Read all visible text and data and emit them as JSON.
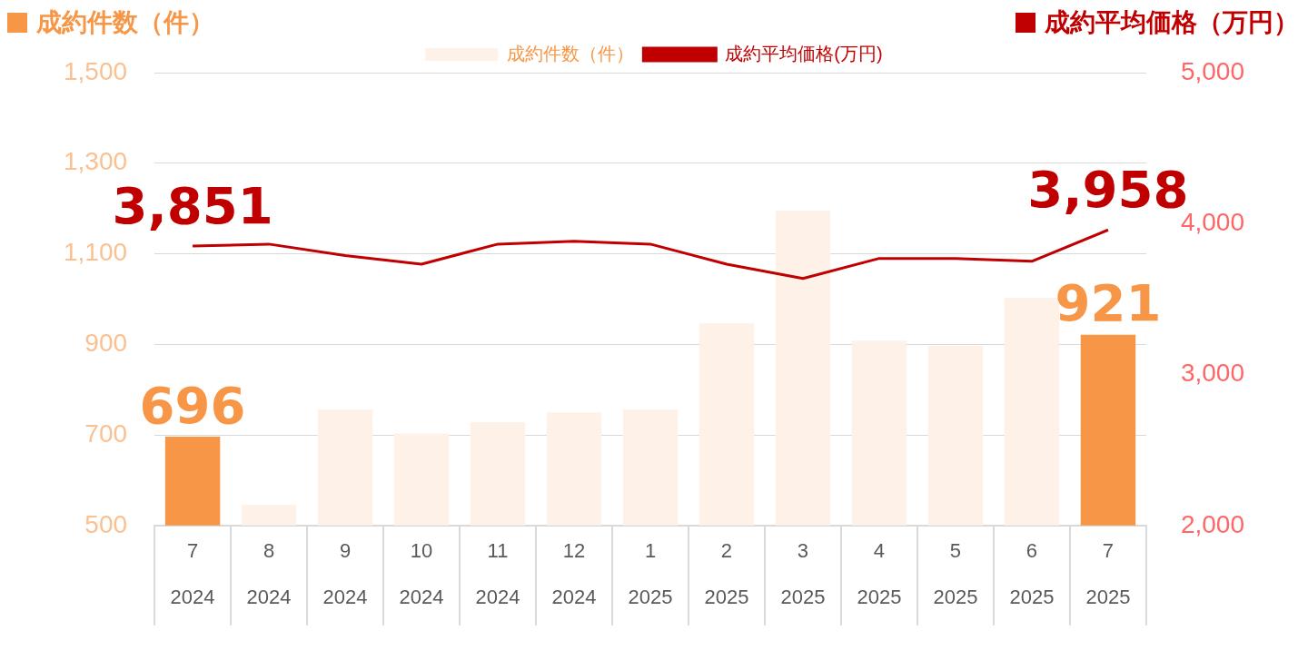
{
  "chart_data": {
    "type": "bar",
    "ylabel": "成約件数（件）",
    "y2label": "成約平均価格（万円）",
    "categories": [
      "7\n2024",
      "8\n2024",
      "9\n2024",
      "10\n2024",
      "11\n2024",
      "12\n2024",
      "1\n2025",
      "2\n2025",
      "3\n2025",
      "4\n2025",
      "5\n2025",
      "6\n2025",
      "7\n2025"
    ],
    "series": [
      {
        "name": "成約件数（件）",
        "color": "#fdf1e8",
        "colors": [
          "#f79646",
          "#fdf1e8",
          "#fdf1e8",
          "#fdf1e8",
          "#fdf1e8",
          "#fdf1e8",
          "#fdf1e8",
          "#fdf1e8",
          "#fdf1e8",
          "#fdf1e8",
          "#fdf1e8",
          "#fdf1e8",
          "#f79646"
        ],
        "values": [
          696,
          545,
          756,
          703,
          728,
          749,
          756,
          946,
          1196,
          908,
          897,
          1003,
          921
        ],
        "value_labels": [
          "696",
          null,
          null,
          null,
          null,
          null,
          null,
          null,
          null,
          null,
          null,
          null,
          "921"
        ]
      },
      {
        "name": "成約平均価格(万円)",
        "type": "line",
        "axis": "y2",
        "color": "#c00000",
        "values": [
          3851,
          3864,
          3788,
          3731,
          3864,
          3883,
          3864,
          3731,
          3636,
          3769,
          3769,
          3750,
          3958
        ],
        "value_labels": [
          "3,851",
          null,
          null,
          null,
          null,
          null,
          null,
          null,
          null,
          null,
          null,
          null,
          "3,958"
        ]
      }
    ],
    "ylim": [
      500,
      1500
    ],
    "yticks": [
      {
        "value": 500,
        "label": "500"
      },
      {
        "value": 700,
        "label": "700"
      },
      {
        "value": 900,
        "label": "900"
      },
      {
        "value": 1100,
        "label": "1,100"
      },
      {
        "value": 1300,
        "label": "1,300"
      },
      {
        "value": 1500,
        "label": "1,500"
      }
    ],
    "y2lim": [
      2000,
      5000
    ],
    "y2ticks": [
      {
        "value": 2000,
        "label": "2,000"
      },
      {
        "value": 3000,
        "label": "3,000"
      },
      {
        "value": 4000,
        "label": "4,000"
      },
      {
        "value": 5000,
        "label": "5,000"
      }
    ],
    "grid": "y",
    "legend": "top",
    "marker": "none",
    "line_style": "solid"
  }
}
